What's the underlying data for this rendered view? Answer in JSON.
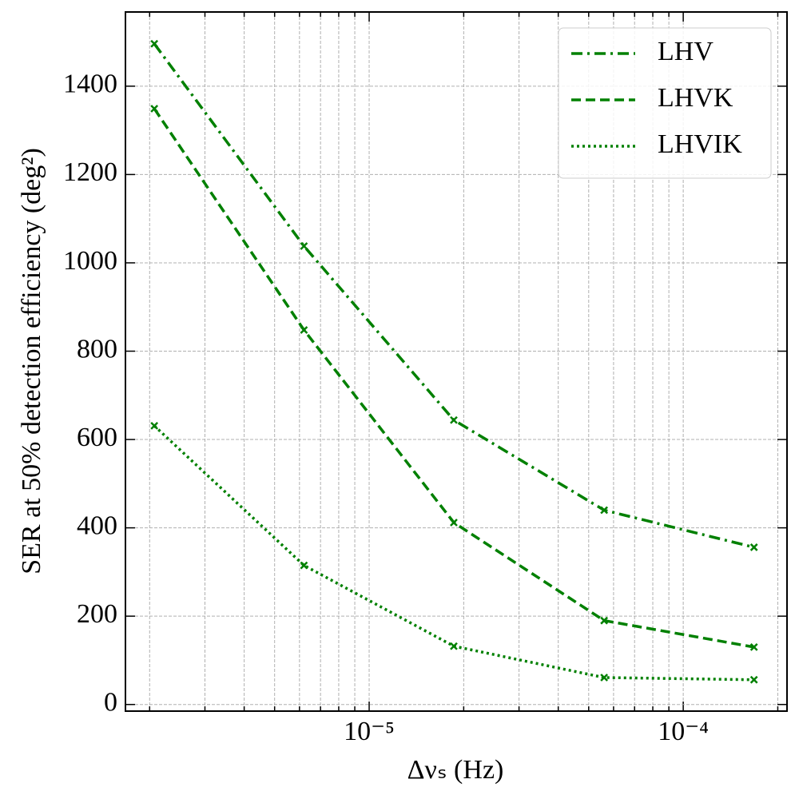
{
  "chart_data": {
    "type": "line",
    "xlabel": "Δνₛ (Hz)",
    "ylabel": "SER at 50% detection efficiency (deg²)",
    "x": [
      2.07e-06,
      6.2e-06,
      1.86e-05,
      5.6e-05,
      0.000168
    ],
    "series": [
      {
        "name": "LHV",
        "color": "#008000",
        "linestyle": "dashdot",
        "values": [
          1496,
          1038,
          644,
          440,
          356
        ]
      },
      {
        "name": "LHVK",
        "color": "#008000",
        "linestyle": "dashed",
        "values": [
          1349,
          848,
          412,
          190,
          130
        ]
      },
      {
        "name": "LHVIK",
        "color": "#008000",
        "linestyle": "dotted",
        "values": [
          631,
          315,
          132,
          61,
          56
        ]
      }
    ],
    "xscale": "log",
    "xlim": [
      1.675e-06,
      0.000214
    ],
    "xticks": [
      {
        "value": 1e-05,
        "label": "10⁻⁵"
      },
      {
        "value": 0.0001,
        "label": "10⁻⁴"
      }
    ],
    "ylim": [
      -15,
      1568
    ],
    "yticks": [
      0,
      200,
      400,
      600,
      800,
      1000,
      1200,
      1400
    ],
    "grid": true,
    "legend": "upper right",
    "marker": "x"
  }
}
